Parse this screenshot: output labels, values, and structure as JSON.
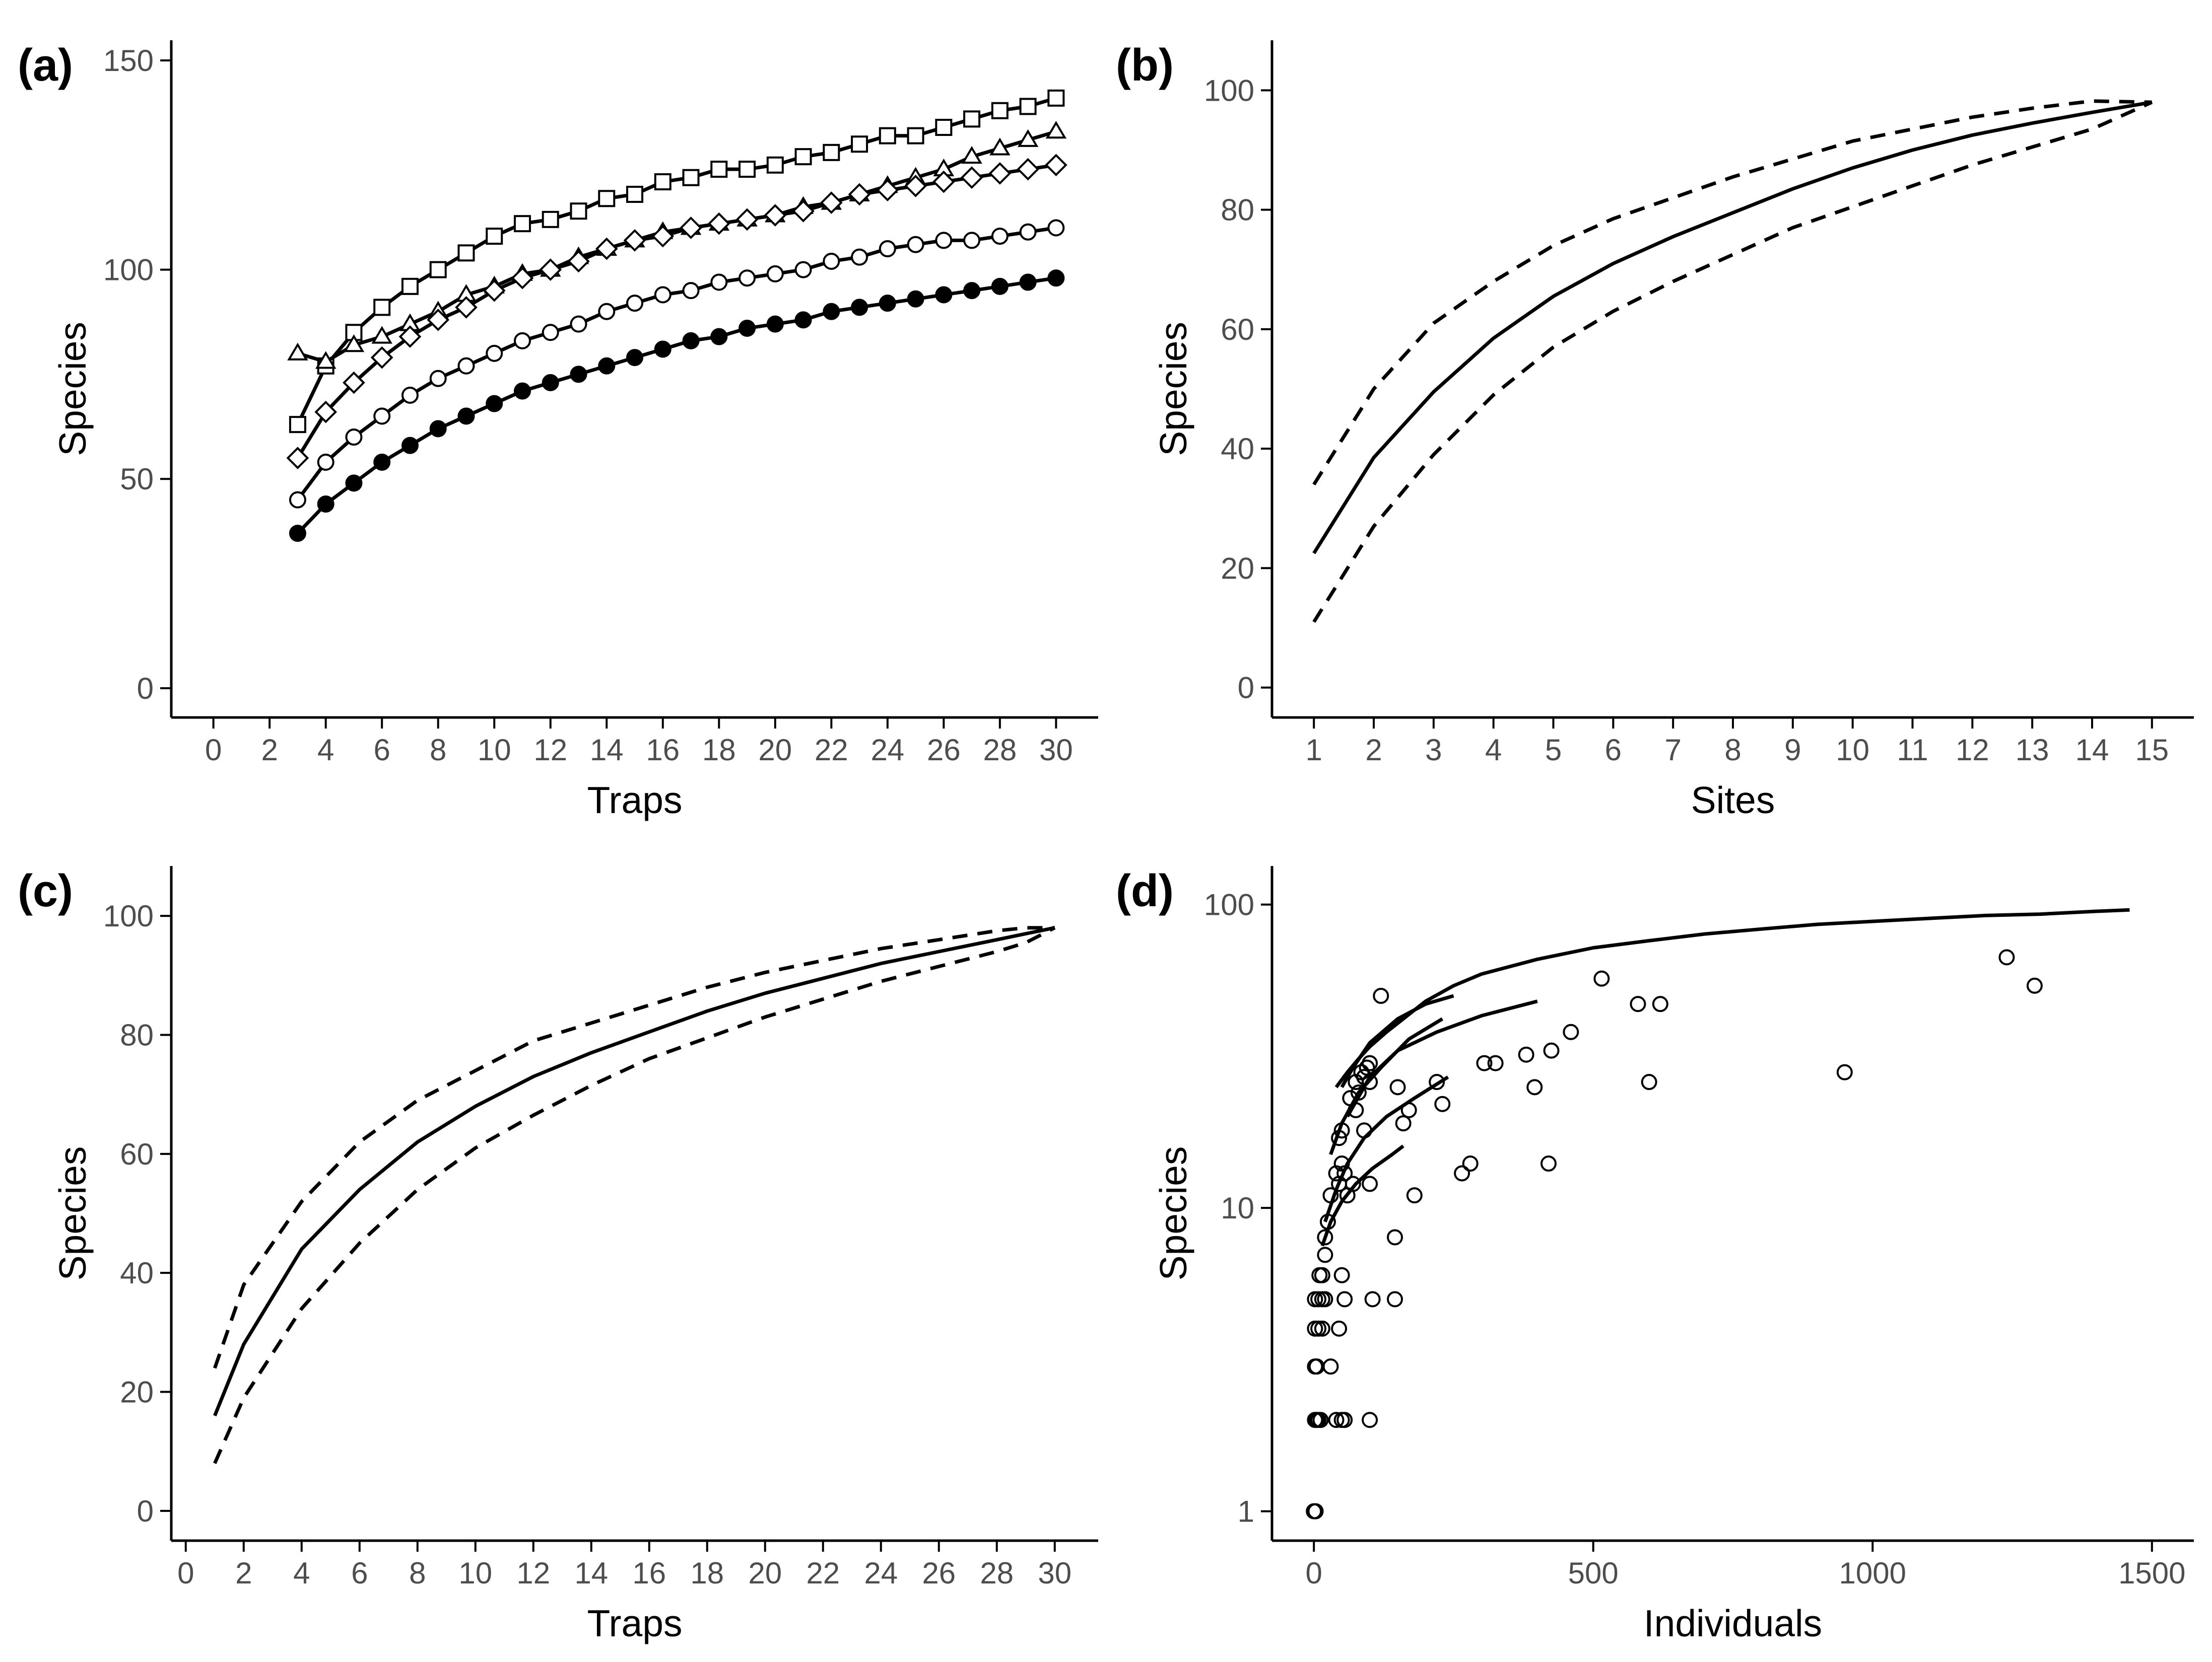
{
  "chart_data": [
    {
      "panel": "(a)",
      "type": "line",
      "xlabel": "Traps",
      "ylabel": "Species",
      "xlim": [
        -1.5,
        31.5
      ],
      "ylim": [
        -7,
        150
      ],
      "x_ticks": [
        0,
        2,
        4,
        6,
        8,
        10,
        12,
        14,
        16,
        18,
        20,
        22,
        24,
        26,
        28,
        30
      ],
      "y_ticks": [
        0,
        50,
        100,
        150
      ],
      "x": [
        3,
        4,
        5,
        6,
        7,
        8,
        9,
        10,
        11,
        12,
        13,
        14,
        15,
        16,
        17,
        18,
        19,
        20,
        21,
        22,
        23,
        24,
        25,
        26,
        27,
        28,
        29,
        30
      ],
      "series": [
        {
          "name": "squares",
          "marker": "square",
          "values": [
            63,
            77,
            85,
            91,
            96,
            100,
            104,
            108,
            111,
            112,
            114,
            117,
            118,
            121,
            122,
            124,
            124,
            125,
            127,
            128,
            130,
            132,
            132,
            134,
            136,
            138,
            139,
            141
          ]
        },
        {
          "name": "triangles",
          "marker": "triangle",
          "values": [
            80,
            78,
            82,
            84,
            87,
            90,
            94,
            96,
            99,
            100,
            103,
            105,
            107,
            109,
            110,
            111,
            112,
            113,
            115,
            116,
            118,
            120,
            122,
            124,
            127,
            129,
            131,
            133
          ]
        },
        {
          "name": "diamonds",
          "marker": "diamond",
          "values": [
            55,
            66,
            73,
            79,
            84,
            88,
            91,
            95,
            98,
            100,
            102,
            105,
            107,
            108,
            110,
            111,
            112,
            113,
            114,
            116,
            118,
            119,
            120,
            121,
            122,
            123,
            124,
            125
          ]
        },
        {
          "name": "open circles",
          "marker": "circle-open",
          "values": [
            45,
            54,
            60,
            65,
            70,
            74,
            77,
            80,
            83,
            85,
            87,
            90,
            92,
            94,
            95,
            97,
            98,
            99,
            100,
            102,
            103,
            105,
            106,
            107,
            107,
            108,
            109,
            110
          ]
        },
        {
          "name": "filled circles",
          "marker": "circle-filled",
          "values": [
            37,
            44,
            49,
            54,
            58,
            62,
            65,
            68,
            71,
            73,
            75,
            77,
            79,
            81,
            83,
            84,
            86,
            87,
            88,
            90,
            91,
            92,
            93,
            94,
            95,
            96,
            97,
            98
          ]
        }
      ]
    },
    {
      "panel": "(b)",
      "type": "line",
      "xlabel": "Sites",
      "ylabel": "Species",
      "xlim": [
        0.3,
        15.7
      ],
      "ylim": [
        -5,
        105
      ],
      "x_ticks": [
        1,
        2,
        3,
        4,
        5,
        6,
        7,
        8,
        9,
        10,
        11,
        12,
        13,
        14,
        15
      ],
      "y_ticks": [
        0,
        20,
        40,
        60,
        80,
        100
      ],
      "x": [
        1,
        2,
        3,
        4,
        5,
        6,
        7,
        8,
        9,
        10,
        11,
        12,
        13,
        14,
        15
      ],
      "series": [
        {
          "name": "estimate",
          "style": "solid",
          "values": [
            22.5,
            38.5,
            49.5,
            58.5,
            65.5,
            71,
            75.5,
            79.5,
            83.5,
            87,
            90,
            92.5,
            94.5,
            96.3,
            98
          ]
        },
        {
          "name": "upper",
          "style": "dashed",
          "values": [
            34,
            50,
            61,
            68,
            74,
            78.5,
            82,
            85.5,
            88.5,
            91.5,
            93.5,
            95.5,
            97,
            98.2,
            98
          ]
        },
        {
          "name": "lower",
          "style": "dashed",
          "values": [
            11,
            27,
            39,
            49,
            57,
            63,
            68,
            72.5,
            77,
            80.5,
            84,
            87.5,
            90.5,
            93.5,
            98
          ]
        }
      ]
    },
    {
      "panel": "(c)",
      "type": "line",
      "xlabel": "Traps",
      "ylabel": "Species",
      "xlim": [
        -0.5,
        31.5
      ],
      "ylim": [
        -5,
        105
      ],
      "x_ticks": [
        0,
        2,
        4,
        6,
        8,
        10,
        12,
        14,
        16,
        18,
        20,
        22,
        24,
        26,
        28,
        30
      ],
      "y_ticks": [
        0,
        20,
        40,
        60,
        80,
        100
      ],
      "x": [
        1,
        2,
        4,
        6,
        8,
        10,
        12,
        14,
        16,
        18,
        20,
        22,
        24,
        26,
        28,
        29,
        30
      ],
      "series": [
        {
          "name": "estimate",
          "style": "solid",
          "values": [
            16,
            28,
            44,
            54,
            62,
            68,
            73,
            77,
            80.5,
            84,
            87,
            89.5,
            92,
            94,
            96,
            97,
            98
          ]
        },
        {
          "name": "upper",
          "style": "dashed",
          "values": [
            24,
            38,
            52,
            62,
            69,
            74,
            79,
            82,
            85,
            88,
            90.5,
            92.5,
            94.5,
            96,
            97.5,
            98,
            98
          ]
        },
        {
          "name": "lower",
          "style": "dashed",
          "values": [
            8,
            19,
            34,
            45,
            54,
            61,
            66.5,
            71.5,
            76,
            79.5,
            83,
            86,
            89,
            91.5,
            94,
            95.5,
            98
          ]
        }
      ]
    },
    {
      "panel": "(d)",
      "type": "scatter",
      "xlabel": "Individuals",
      "ylabel": "Species",
      "xscale": "linear",
      "yscale": "log10",
      "xlim": [
        -75,
        1575
      ],
      "ylim": [
        0.8,
        115
      ],
      "x_ticks": [
        0,
        500,
        1000,
        1500
      ],
      "y_ticks": [
        1,
        10,
        100
      ],
      "points": [
        [
          0,
          1
        ],
        [
          3,
          1
        ],
        [
          2,
          2
        ],
        [
          5,
          2
        ],
        [
          8,
          2
        ],
        [
          12,
          2
        ],
        [
          40,
          2
        ],
        [
          50,
          2
        ],
        [
          55,
          2
        ],
        [
          100,
          2
        ],
        [
          2,
          3
        ],
        [
          5,
          3
        ],
        [
          30,
          3
        ],
        [
          2,
          4
        ],
        [
          8,
          4
        ],
        [
          15,
          4
        ],
        [
          45,
          4
        ],
        [
          2,
          5
        ],
        [
          8,
          5
        ],
        [
          15,
          5
        ],
        [
          20,
          5
        ],
        [
          55,
          5
        ],
        [
          105,
          5
        ],
        [
          145,
          5
        ],
        [
          10,
          6
        ],
        [
          15,
          6
        ],
        [
          50,
          6
        ],
        [
          20,
          7
        ],
        [
          20,
          8
        ],
        [
          145,
          8
        ],
        [
          25,
          9
        ],
        [
          30,
          11
        ],
        [
          60,
          11
        ],
        [
          180,
          11
        ],
        [
          45,
          12
        ],
        [
          70,
          12
        ],
        [
          100,
          12
        ],
        [
          40,
          13
        ],
        [
          55,
          13
        ],
        [
          265,
          13
        ],
        [
          280,
          14
        ],
        [
          420,
          14
        ],
        [
          50,
          14
        ],
        [
          45,
          17
        ],
        [
          50,
          18
        ],
        [
          90,
          18
        ],
        [
          160,
          19
        ],
        [
          75,
          21
        ],
        [
          170,
          21
        ],
        [
          65,
          23
        ],
        [
          80,
          24
        ],
        [
          230,
          22
        ],
        [
          150,
          25
        ],
        [
          75,
          26
        ],
        [
          100,
          26
        ],
        [
          220,
          26
        ],
        [
          395,
          25
        ],
        [
          600,
          26
        ],
        [
          90,
          27
        ],
        [
          85,
          28
        ],
        [
          95,
          29
        ],
        [
          100,
          30
        ],
        [
          305,
          30
        ],
        [
          325,
          30
        ],
        [
          380,
          32
        ],
        [
          425,
          33
        ],
        [
          460,
          38
        ],
        [
          580,
          47
        ],
        [
          620,
          47
        ],
        [
          120,
          50
        ],
        [
          515,
          57
        ],
        [
          1290,
          54
        ],
        [
          1240,
          67
        ],
        [
          950,
          28
        ]
      ],
      "curves": [
        {
          "name": "curve 1",
          "x": [
            40,
            60,
            80,
            100,
            130,
            160,
            200,
            250,
            300,
            400,
            500,
            600,
            700,
            800,
            900,
            1000,
            1100,
            1200,
            1300,
            1400,
            1460
          ],
          "y": [
            25,
            28,
            31,
            34,
            38,
            42,
            48,
            54,
            59,
            66,
            72,
            76,
            80,
            83,
            86,
            88,
            90,
            92,
            93,
            95,
            96
          ]
        },
        {
          "name": "curve 2",
          "x": [
            50,
            70,
            100,
            150,
            200,
            250
          ],
          "y": [
            25,
            29,
            35,
            42,
            47,
            50
          ]
        },
        {
          "name": "curve 3",
          "x": [
            30,
            50,
            80,
            120,
            170,
            230
          ],
          "y": [
            15,
            19,
            24,
            29,
            36,
            42
          ]
        },
        {
          "name": "curve 4",
          "x": [
            60,
            100,
            150,
            220,
            300,
            400
          ],
          "y": [
            20,
            27,
            33,
            38,
            43,
            48
          ]
        },
        {
          "name": "curve 5",
          "x": [
            20,
            40,
            60,
            90,
            130,
            180,
            240
          ],
          "y": [
            9,
            11.5,
            14,
            17,
            20,
            23,
            27
          ]
        },
        {
          "name": "curve 6",
          "x": [
            15,
            30,
            50,
            75,
            105,
            140,
            160
          ],
          "y": [
            7.5,
            9,
            10.5,
            12,
            13.5,
            15,
            16
          ]
        }
      ]
    }
  ],
  "panels": [
    {
      "tag": "(a)",
      "xlabel": "Traps",
      "ylabel": "Species",
      "x_tick_labels": [
        "0",
        "2",
        "4",
        "6",
        "8",
        "10",
        "12",
        "14",
        "16",
        "18",
        "20",
        "22",
        "24",
        "26",
        "28",
        "30"
      ],
      "y_tick_labels": [
        "0",
        "50",
        "100",
        "150"
      ]
    },
    {
      "tag": "(b)",
      "xlabel": "Sites",
      "ylabel": "Species",
      "x_tick_labels": [
        "1",
        "2",
        "3",
        "4",
        "5",
        "6",
        "7",
        "8",
        "9",
        "10",
        "11",
        "12",
        "13",
        "14",
        "15"
      ],
      "y_tick_labels": [
        "0",
        "20",
        "40",
        "60",
        "80",
        "100"
      ]
    },
    {
      "tag": "(c)",
      "xlabel": "Traps",
      "ylabel": "Species",
      "x_tick_labels": [
        "0",
        "2",
        "4",
        "6",
        "8",
        "10",
        "12",
        "14",
        "16",
        "18",
        "20",
        "22",
        "24",
        "26",
        "28",
        "30"
      ],
      "y_tick_labels": [
        "0",
        "20",
        "40",
        "60",
        "80",
        "100"
      ]
    },
    {
      "tag": "(d)",
      "xlabel": "Individuals",
      "ylabel": "Species",
      "x_tick_labels": [
        "0",
        "500",
        "1000",
        "1500"
      ],
      "y_tick_labels": [
        "1",
        "10",
        "100"
      ]
    }
  ],
  "colors": {
    "ink": "#000000",
    "tick_text": "#4d4d4d",
    "background": "#ffffff"
  }
}
